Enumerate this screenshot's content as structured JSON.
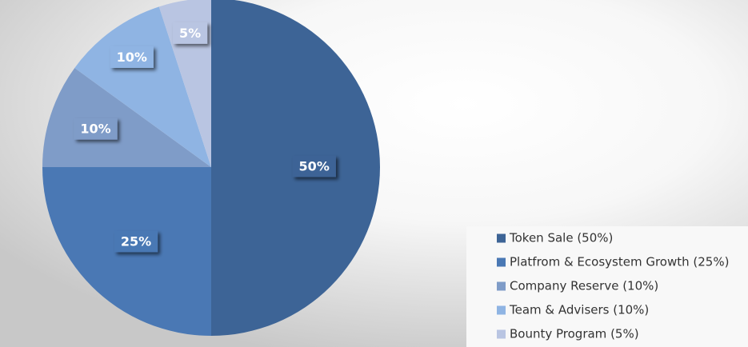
{
  "chart_data": {
    "type": "pie",
    "categories": [
      "Token Sale (50%)",
      "Platfrom & Ecosystem Growth (25%)",
      "Company Reserve (10%)",
      "Team & Advisers (10%)",
      "Bounty Program (5%)"
    ],
    "values": [
      50,
      25,
      10,
      10,
      5
    ],
    "value_labels": [
      "50%",
      "25%",
      "10%",
      "10%",
      "5%"
    ],
    "colors": [
      "#3d6496",
      "#4a78b4",
      "#7f9cc8",
      "#8fb4e3",
      "#b9c5e2"
    ],
    "legend": "bottom-right"
  }
}
